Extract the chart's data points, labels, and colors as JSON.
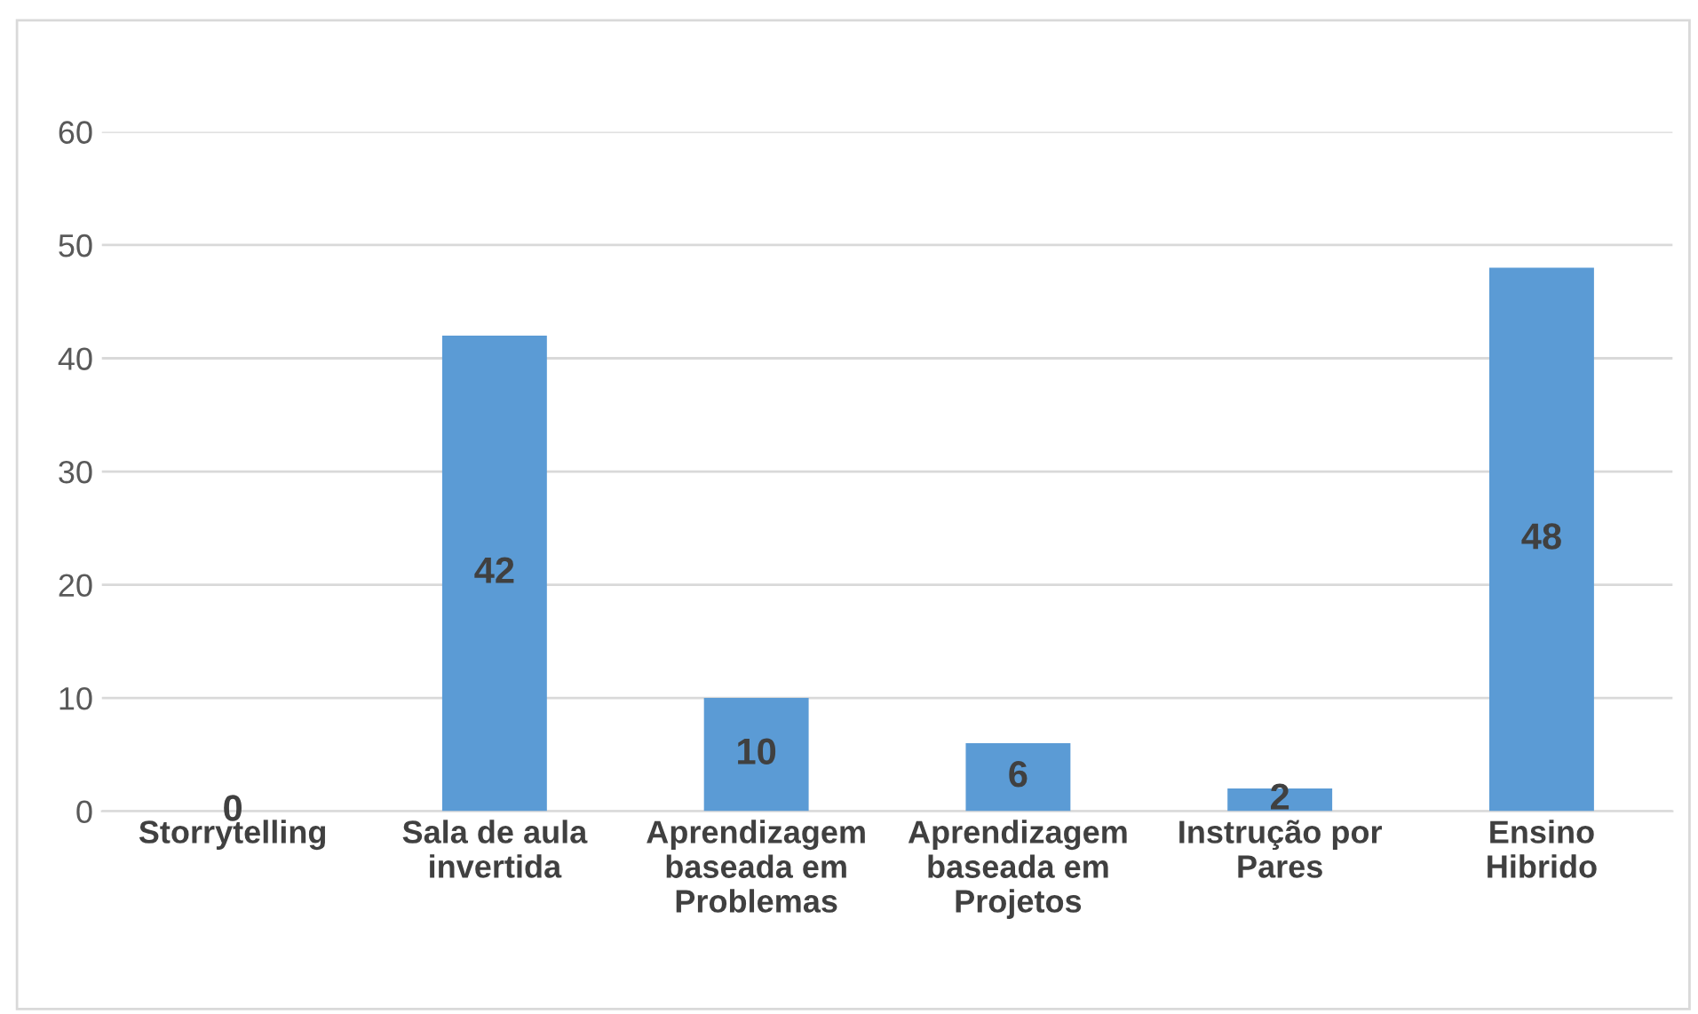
{
  "chart_data": {
    "type": "bar",
    "categories": [
      "Storrytelling",
      "Sala de aula\ninvertida",
      "Aprendizagem\nbaseada em\nProblemas",
      "Aprendizagem\nbaseada em\nProjetos",
      "Instrução por\nPares",
      "Ensino\nHibrido"
    ],
    "values": [
      0,
      42,
      10,
      6,
      2,
      48
    ],
    "color": "#5b9bd5",
    "ylim": [
      0,
      60
    ],
    "yticks": [
      0,
      10,
      20,
      30,
      40,
      50,
      60
    ],
    "grid": "y",
    "data_labels": true
  }
}
